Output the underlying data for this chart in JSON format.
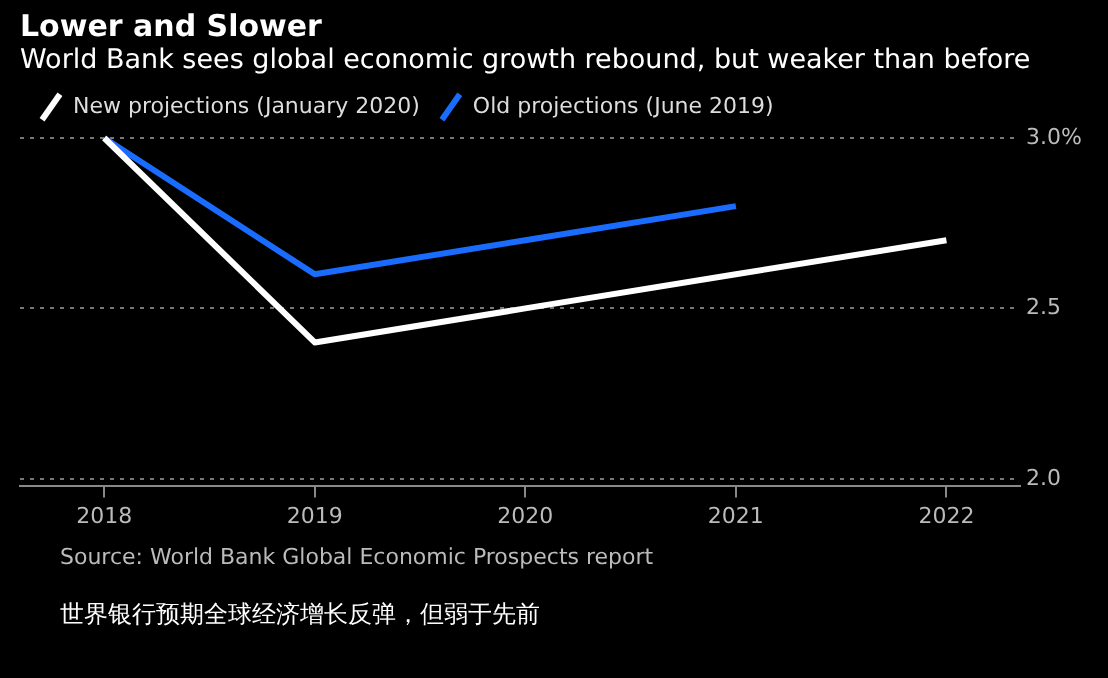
{
  "chart_data": {
    "type": "line",
    "title": "Lower and Slower",
    "subtitle": "World Bank sees global economic growth rebound, but weaker than before",
    "x": [
      2018,
      2019,
      2020,
      2021,
      2022
    ],
    "series": [
      {
        "name": "New projections (January 2020)",
        "color": "#ffffff",
        "values": [
          3.0,
          2.4,
          2.5,
          2.6,
          2.7
        ]
      },
      {
        "name": "Old projections (June 2019)",
        "color": "#1a6cff",
        "values": [
          3.0,
          2.6,
          2.7,
          2.8,
          null
        ]
      }
    ],
    "xlim": [
      2017.6,
      2022.35
    ],
    "xticks": [
      2018,
      2019,
      2020,
      2021,
      2022
    ],
    "ylim": [
      1.98,
      3.0
    ],
    "yticks": [
      {
        "value": 2,
        "label": "2.0"
      },
      2.5,
      {
        "value": 3,
        "label": "3.0%"
      }
    ],
    "grid": "y",
    "legend": "top left",
    "marker": "none",
    "line_style": "solid",
    "annotations": [
      "Source: World Bank Global Economic Prospects report",
      "世界银行预期全球经济增长反弹，但弱于先前"
    ]
  }
}
